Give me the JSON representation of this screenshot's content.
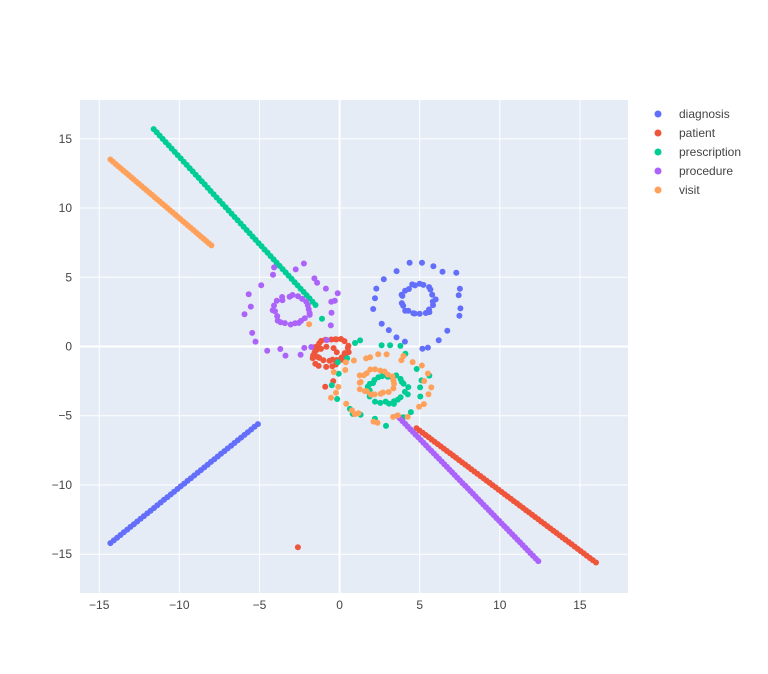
{
  "chart_data": {
    "type": "scatter",
    "title": "",
    "xlabel": "",
    "ylabel": "",
    "xlim": [
      -16.2,
      18.0
    ],
    "ylim": [
      -17.8,
      17.8
    ],
    "xticks": [
      -15,
      -10,
      -5,
      0,
      5,
      10,
      15
    ],
    "yticks": [
      -15,
      -10,
      -5,
      0,
      5,
      10,
      15
    ],
    "grid": true,
    "legend_position": "top-right",
    "colors": {
      "plot_bg": "#E5ECF6",
      "grid": "#FFFFFF",
      "zero_line": "#FFFFFF",
      "tick_text": "#444444"
    },
    "series": [
      {
        "name": "diagnosis",
        "color": "#636EFA",
        "segments": [
          {
            "from": [
              -14.3,
              -14.2
            ],
            "to": [
              -5.1,
              -5.6
            ],
            "count": 45
          }
        ],
        "clusters": [
          {
            "center": [
              4.9,
              3.4
            ],
            "rx": 1.0,
            "ry": 1.1,
            "count": 24
          },
          {
            "center": [
              5.0,
              3.1
            ],
            "rx": 2.8,
            "ry": 3.0,
            "count": 22
          }
        ],
        "points": []
      },
      {
        "name": "patient",
        "color": "#EF553B",
        "segments": [
          {
            "from": [
              4.8,
              -5.9
            ],
            "to": [
              16.0,
              -15.6
            ],
            "count": 60
          }
        ],
        "clusters": [
          {
            "center": [
              -0.5,
              -0.2
            ],
            "rx": 1.0,
            "ry": 0.8,
            "count": 24
          },
          {
            "center": [
              -0.8,
              -0.8
            ],
            "rx": 0.9,
            "ry": 0.7,
            "count": 14
          }
        ],
        "points": [
          [
            -2.6,
            -14.5
          ],
          [
            -0.9,
            -2.9
          ],
          [
            -0.4,
            -2.5
          ]
        ]
      },
      {
        "name": "prescription",
        "color": "#00CC96",
        "segments": [
          {
            "from": [
              -11.6,
              15.7
            ],
            "to": [
              -1.5,
              3.0
            ],
            "count": 55
          }
        ],
        "clusters": [
          {
            "center": [
              3.0,
              -3.1
            ],
            "rx": 1.2,
            "ry": 1.0,
            "count": 26
          },
          {
            "center": [
              2.3,
              -2.6
            ],
            "rx": 2.7,
            "ry": 2.9,
            "count": 22
          }
        ],
        "points": [
          [
            -1.1,
            2.0
          ],
          [
            5.6,
            -2.1
          ]
        ]
      },
      {
        "name": "procedure",
        "color": "#AB63FA",
        "segments": [
          {
            "from": [
              3.6,
              -5.0
            ],
            "to": [
              12.4,
              -15.5
            ],
            "count": 55
          }
        ],
        "clusters": [
          {
            "center": [
              -3.0,
              2.6
            ],
            "rx": 1.1,
            "ry": 1.0,
            "count": 24
          },
          {
            "center": [
              -3.0,
              2.6
            ],
            "rx": 2.8,
            "ry": 3.2,
            "count": 22
          }
        ],
        "points": [
          [
            -0.3,
            3.3
          ],
          [
            -2.2,
            -0.1
          ],
          [
            -1.4,
            4.6
          ]
        ]
      },
      {
        "name": "visit",
        "color": "#FFA15A",
        "segments": [
          {
            "from": [
              -14.3,
              13.5
            ],
            "to": [
              -8.0,
              7.3
            ],
            "count": 40
          }
        ],
        "clusters": [
          {
            "center": [
              2.3,
              -2.6
            ],
            "rx": 1.1,
            "ry": 0.9,
            "count": 22
          },
          {
            "center": [
              2.5,
              -2.9
            ],
            "rx": 2.9,
            "ry": 2.4,
            "count": 30
          }
        ],
        "points": [
          [
            -1.9,
            1.6
          ]
        ]
      }
    ]
  }
}
